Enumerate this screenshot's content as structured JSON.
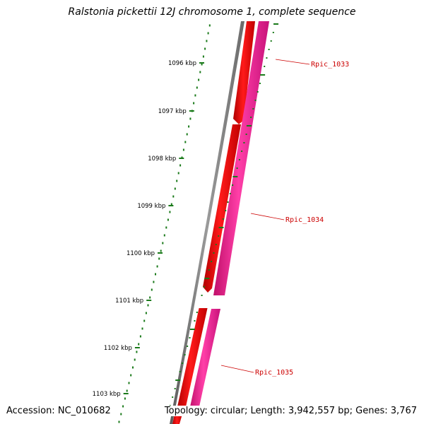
{
  "title": "Ralstonia pickettii 12J chromosome 1, complete sequence",
  "footer": {
    "accession": "Accession: NC_010682",
    "summary": "Topology: circular; Length: 3,942,557 bp; Genes: 3,767"
  },
  "ruler": {
    "unit": "kbp",
    "major_ticks": [
      "1096 kbp",
      "1097 kbp",
      "1098 kbp",
      "1099 kbp",
      "1100 kbp",
      "1101 kbp",
      "1102 kbp",
      "1103 kbp"
    ]
  },
  "genes": [
    {
      "name": "Rpic_1033"
    },
    {
      "name": "Rpic_1034"
    },
    {
      "name": "Rpic_1035"
    }
  ],
  "colors": {
    "backbone": "#808080",
    "strand_red": "#ff0000",
    "strand_pink": "#ff1493",
    "ticks": "#1a7a1a",
    "label": "#cc0000"
  }
}
